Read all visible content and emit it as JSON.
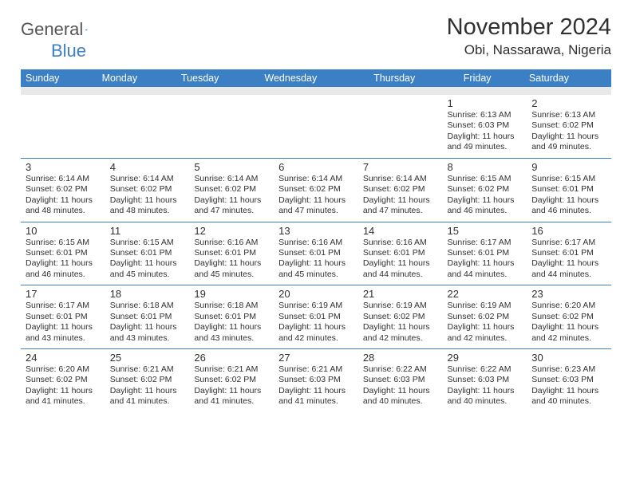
{
  "brand": {
    "general": "General",
    "blue": "Blue"
  },
  "title": "November 2024",
  "subtitle": "Obi, Nassarawa, Nigeria",
  "colors": {
    "accent": "#3b7fc4",
    "header_bg": "#3b7fc4",
    "header_fg": "#ffffff",
    "spacer": "#e9e9e9",
    "text": "#303030"
  },
  "weekdays": [
    "Sunday",
    "Monday",
    "Tuesday",
    "Wednesday",
    "Thursday",
    "Friday",
    "Saturday"
  ],
  "weeks": [
    [
      {
        "n": "",
        "sr": "",
        "ss": "",
        "dl": ""
      },
      {
        "n": "",
        "sr": "",
        "ss": "",
        "dl": ""
      },
      {
        "n": "",
        "sr": "",
        "ss": "",
        "dl": ""
      },
      {
        "n": "",
        "sr": "",
        "ss": "",
        "dl": ""
      },
      {
        "n": "",
        "sr": "",
        "ss": "",
        "dl": ""
      },
      {
        "n": "1",
        "sr": "Sunrise: 6:13 AM",
        "ss": "Sunset: 6:03 PM",
        "dl": "Daylight: 11 hours and 49 minutes."
      },
      {
        "n": "2",
        "sr": "Sunrise: 6:13 AM",
        "ss": "Sunset: 6:02 PM",
        "dl": "Daylight: 11 hours and 49 minutes."
      }
    ],
    [
      {
        "n": "3",
        "sr": "Sunrise: 6:14 AM",
        "ss": "Sunset: 6:02 PM",
        "dl": "Daylight: 11 hours and 48 minutes."
      },
      {
        "n": "4",
        "sr": "Sunrise: 6:14 AM",
        "ss": "Sunset: 6:02 PM",
        "dl": "Daylight: 11 hours and 48 minutes."
      },
      {
        "n": "5",
        "sr": "Sunrise: 6:14 AM",
        "ss": "Sunset: 6:02 PM",
        "dl": "Daylight: 11 hours and 47 minutes."
      },
      {
        "n": "6",
        "sr": "Sunrise: 6:14 AM",
        "ss": "Sunset: 6:02 PM",
        "dl": "Daylight: 11 hours and 47 minutes."
      },
      {
        "n": "7",
        "sr": "Sunrise: 6:14 AM",
        "ss": "Sunset: 6:02 PM",
        "dl": "Daylight: 11 hours and 47 minutes."
      },
      {
        "n": "8",
        "sr": "Sunrise: 6:15 AM",
        "ss": "Sunset: 6:02 PM",
        "dl": "Daylight: 11 hours and 46 minutes."
      },
      {
        "n": "9",
        "sr": "Sunrise: 6:15 AM",
        "ss": "Sunset: 6:01 PM",
        "dl": "Daylight: 11 hours and 46 minutes."
      }
    ],
    [
      {
        "n": "10",
        "sr": "Sunrise: 6:15 AM",
        "ss": "Sunset: 6:01 PM",
        "dl": "Daylight: 11 hours and 46 minutes."
      },
      {
        "n": "11",
        "sr": "Sunrise: 6:15 AM",
        "ss": "Sunset: 6:01 PM",
        "dl": "Daylight: 11 hours and 45 minutes."
      },
      {
        "n": "12",
        "sr": "Sunrise: 6:16 AM",
        "ss": "Sunset: 6:01 PM",
        "dl": "Daylight: 11 hours and 45 minutes."
      },
      {
        "n": "13",
        "sr": "Sunrise: 6:16 AM",
        "ss": "Sunset: 6:01 PM",
        "dl": "Daylight: 11 hours and 45 minutes."
      },
      {
        "n": "14",
        "sr": "Sunrise: 6:16 AM",
        "ss": "Sunset: 6:01 PM",
        "dl": "Daylight: 11 hours and 44 minutes."
      },
      {
        "n": "15",
        "sr": "Sunrise: 6:17 AM",
        "ss": "Sunset: 6:01 PM",
        "dl": "Daylight: 11 hours and 44 minutes."
      },
      {
        "n": "16",
        "sr": "Sunrise: 6:17 AM",
        "ss": "Sunset: 6:01 PM",
        "dl": "Daylight: 11 hours and 44 minutes."
      }
    ],
    [
      {
        "n": "17",
        "sr": "Sunrise: 6:17 AM",
        "ss": "Sunset: 6:01 PM",
        "dl": "Daylight: 11 hours and 43 minutes."
      },
      {
        "n": "18",
        "sr": "Sunrise: 6:18 AM",
        "ss": "Sunset: 6:01 PM",
        "dl": "Daylight: 11 hours and 43 minutes."
      },
      {
        "n": "19",
        "sr": "Sunrise: 6:18 AM",
        "ss": "Sunset: 6:01 PM",
        "dl": "Daylight: 11 hours and 43 minutes."
      },
      {
        "n": "20",
        "sr": "Sunrise: 6:19 AM",
        "ss": "Sunset: 6:01 PM",
        "dl": "Daylight: 11 hours and 42 minutes."
      },
      {
        "n": "21",
        "sr": "Sunrise: 6:19 AM",
        "ss": "Sunset: 6:02 PM",
        "dl": "Daylight: 11 hours and 42 minutes."
      },
      {
        "n": "22",
        "sr": "Sunrise: 6:19 AM",
        "ss": "Sunset: 6:02 PM",
        "dl": "Daylight: 11 hours and 42 minutes."
      },
      {
        "n": "23",
        "sr": "Sunrise: 6:20 AM",
        "ss": "Sunset: 6:02 PM",
        "dl": "Daylight: 11 hours and 42 minutes."
      }
    ],
    [
      {
        "n": "24",
        "sr": "Sunrise: 6:20 AM",
        "ss": "Sunset: 6:02 PM",
        "dl": "Daylight: 11 hours and 41 minutes."
      },
      {
        "n": "25",
        "sr": "Sunrise: 6:21 AM",
        "ss": "Sunset: 6:02 PM",
        "dl": "Daylight: 11 hours and 41 minutes."
      },
      {
        "n": "26",
        "sr": "Sunrise: 6:21 AM",
        "ss": "Sunset: 6:02 PM",
        "dl": "Daylight: 11 hours and 41 minutes."
      },
      {
        "n": "27",
        "sr": "Sunrise: 6:21 AM",
        "ss": "Sunset: 6:03 PM",
        "dl": "Daylight: 11 hours and 41 minutes."
      },
      {
        "n": "28",
        "sr": "Sunrise: 6:22 AM",
        "ss": "Sunset: 6:03 PM",
        "dl": "Daylight: 11 hours and 40 minutes."
      },
      {
        "n": "29",
        "sr": "Sunrise: 6:22 AM",
        "ss": "Sunset: 6:03 PM",
        "dl": "Daylight: 11 hours and 40 minutes."
      },
      {
        "n": "30",
        "sr": "Sunrise: 6:23 AM",
        "ss": "Sunset: 6:03 PM",
        "dl": "Daylight: 11 hours and 40 minutes."
      }
    ]
  ]
}
